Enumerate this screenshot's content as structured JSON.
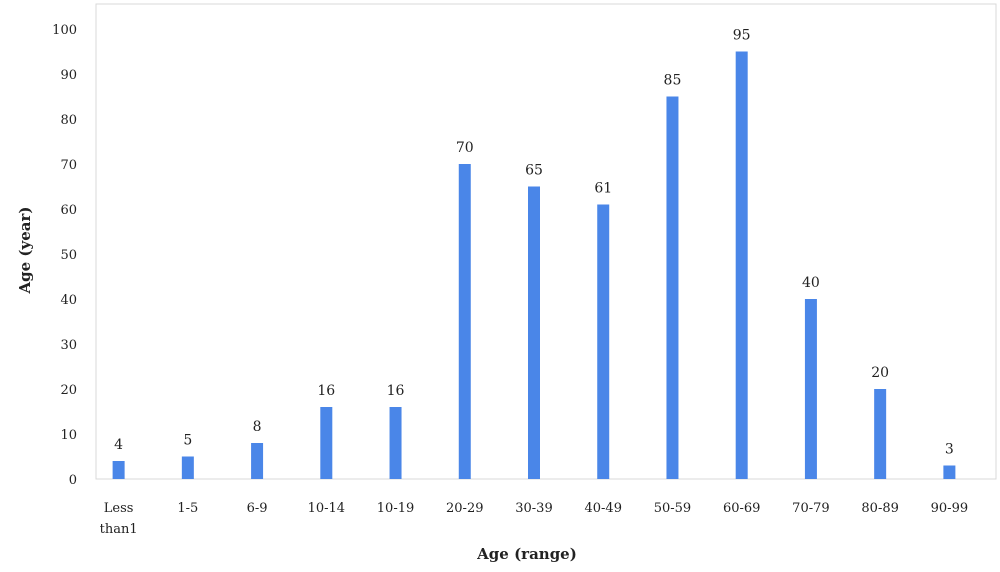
{
  "chart_data": {
    "type": "bar",
    "categories": [
      "Less than1",
      "1-5",
      "6-9",
      "10-14",
      "10-19",
      "20-29",
      "30-39",
      "40-49",
      "50-59",
      "60-69",
      "70-79",
      "80-89",
      "90-99"
    ],
    "values": [
      4,
      5,
      8,
      16,
      16,
      70,
      65,
      61,
      85,
      95,
      40,
      20,
      3
    ],
    "xlabel": "Age (range)",
    "ylabel": "Age (year)",
    "ylim": [
      0,
      100
    ],
    "yticks": [
      0,
      10,
      20,
      30,
      40,
      50,
      60,
      70,
      80,
      90,
      100
    ],
    "grid": false,
    "bar_color": "#4a86e8"
  }
}
